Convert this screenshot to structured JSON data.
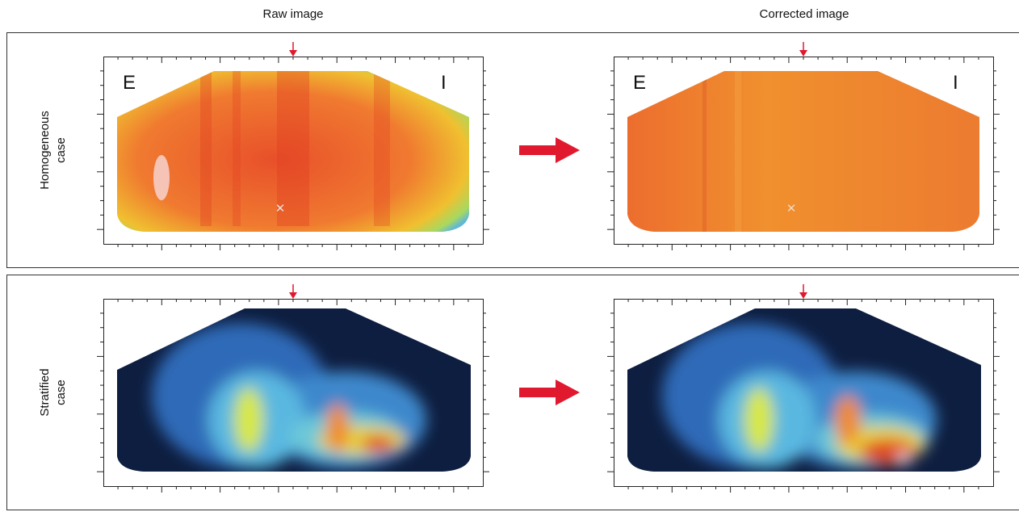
{
  "columns": [
    "Raw image",
    "Corrected image"
  ],
  "rows": [
    {
      "label": [
        "Homogeneous",
        "case"
      ],
      "side_labels": {
        "left": "E",
        "right": "I"
      }
    },
    {
      "label": [
        "Stratified",
        "case"
      ]
    }
  ]
}
